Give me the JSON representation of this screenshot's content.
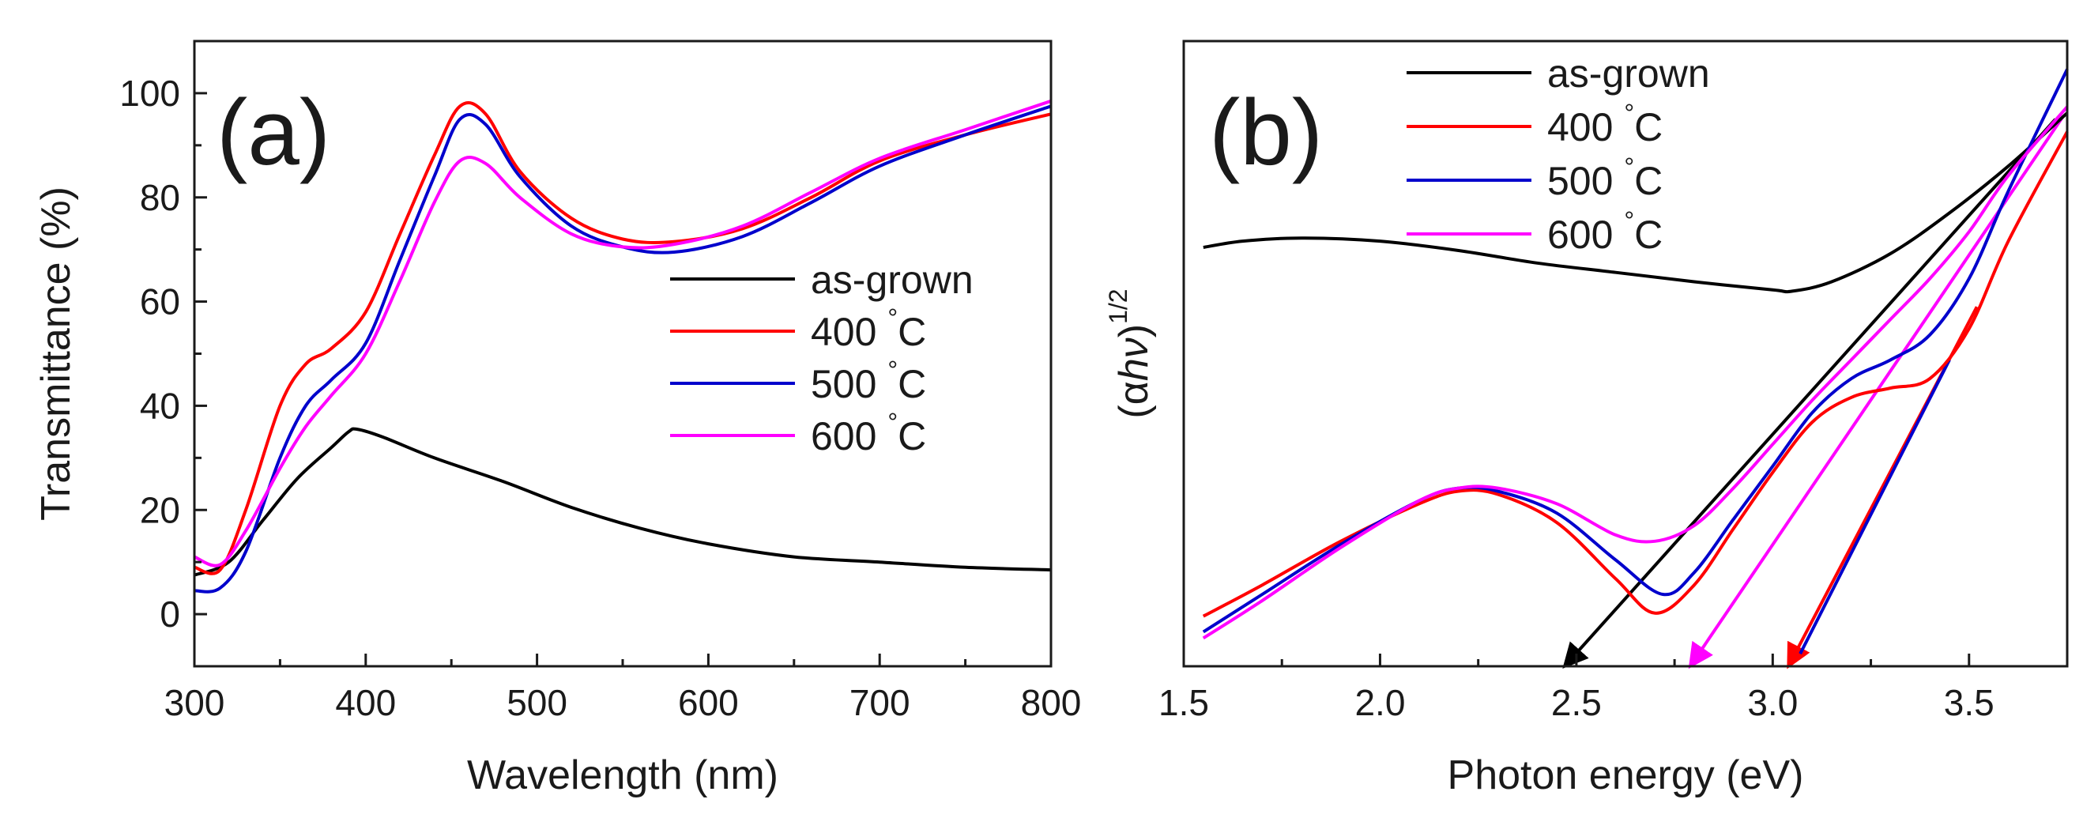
{
  "figure": {
    "description_free": true
  },
  "chart_data": [
    {
      "type": "line",
      "panel_label": "(a)",
      "xlabel": "Wavelength (nm)",
      "ylabel": "Transmittance (%)",
      "xlim": [
        300,
        800
      ],
      "ylim": [
        -10,
        110
      ],
      "xticks": [
        300,
        400,
        500,
        600,
        700,
        800
      ],
      "xtick_labels": [
        "300",
        "400",
        "500",
        "600",
        "700",
        "800"
      ],
      "yticks": [
        0,
        20,
        40,
        60,
        80,
        100
      ],
      "ytick_labels": [
        "0",
        "20",
        "40",
        "60",
        "80",
        "100"
      ],
      "grid": false,
      "legend_position": "right-middle",
      "series": [
        {
          "name": "as-grown",
          "label": "as-grown",
          "unit": "",
          "color": "#000000",
          "x": [
            300,
            320,
            340,
            360,
            380,
            390,
            395,
            410,
            440,
            480,
            520,
            560,
            600,
            650,
            700,
            750,
            800
          ],
          "y": [
            7.5,
            10,
            18,
            26,
            32,
            35,
            35.5,
            34,
            30,
            25.5,
            20.5,
            16.5,
            13.5,
            11,
            10,
            9,
            8.5
          ]
        },
        {
          "name": "400 °C",
          "label": "400",
          "unit": "°C",
          "color": "#ff0000",
          "x": [
            300,
            315,
            330,
            350,
            365,
            380,
            400,
            420,
            440,
            455,
            470,
            490,
            520,
            550,
            580,
            620,
            660,
            700,
            750,
            800
          ],
          "y": [
            9,
            8.5,
            20,
            40,
            48,
            51,
            58,
            73,
            88,
            97.5,
            96,
            85,
            76,
            72,
            71.5,
            74,
            80,
            87,
            92,
            96
          ]
        },
        {
          "name": "500 °C",
          "label": "500",
          "unit": "°C",
          "color": "#0000cc",
          "x": [
            300,
            315,
            330,
            350,
            365,
            380,
            400,
            420,
            440,
            455,
            470,
            490,
            520,
            550,
            580,
            620,
            660,
            700,
            750,
            800
          ],
          "y": [
            4.5,
            5,
            12,
            30,
            40,
            45,
            52,
            68,
            84,
            95,
            94,
            84,
            74.5,
            70.5,
            69.5,
            72.5,
            79,
            86,
            92,
            97.5
          ]
        },
        {
          "name": "600 °C",
          "label": "600",
          "unit": "°C",
          "color": "#ff00ff",
          "x": [
            300,
            315,
            330,
            350,
            365,
            380,
            400,
            420,
            440,
            455,
            470,
            490,
            520,
            550,
            580,
            620,
            660,
            700,
            750,
            800
          ],
          "y": [
            11,
            9.5,
            16,
            28,
            36,
            42,
            50,
            64,
            79,
            87,
            86.5,
            80,
            73,
            70.5,
            71,
            74.5,
            81,
            87.5,
            93,
            98.5
          ]
        }
      ]
    },
    {
      "type": "line",
      "panel_label": "(b)",
      "xlabel": "Photon energy (eV)",
      "ylabel": "(αhν)",
      "ylabel_superscript": "1/2",
      "ylabel_parts": [
        "(α",
        "h",
        "ν",
        ")"
      ],
      "xlim": [
        1.5,
        3.75
      ],
      "ylim": [
        0,
        10
      ],
      "xticks": [
        1.5,
        2.0,
        2.5,
        3.0,
        3.5
      ],
      "xtick_labels": [
        "1.5",
        "2.0",
        "2.5",
        "3.0",
        "3.5"
      ],
      "yticks": [],
      "grid": false,
      "legend_position": "top-center",
      "series": [
        {
          "name": "as-grown",
          "label": "as-grown",
          "unit": "",
          "color": "#000000",
          "x": [
            1.55,
            1.65,
            1.8,
            2.0,
            2.2,
            2.4,
            2.6,
            2.8,
            3.0,
            3.05,
            3.15,
            3.3,
            3.45,
            3.6,
            3.75
          ],
          "y": [
            6.7,
            6.8,
            6.85,
            6.8,
            6.65,
            6.45,
            6.3,
            6.15,
            6.02,
            6.0,
            6.15,
            6.6,
            7.25,
            8.0,
            8.85
          ]
        },
        {
          "name": "400 °C",
          "label": "400",
          "unit": "°C",
          "color": "#ff0000",
          "x": [
            1.55,
            1.7,
            1.9,
            2.1,
            2.2,
            2.3,
            2.45,
            2.6,
            2.7,
            2.8,
            2.9,
            3.0,
            3.1,
            3.2,
            3.3,
            3.4,
            3.5,
            3.6,
            3.75
          ],
          "y": [
            0.8,
            1.3,
            2.0,
            2.6,
            2.8,
            2.75,
            2.3,
            1.4,
            0.85,
            1.3,
            2.2,
            3.1,
            3.9,
            4.3,
            4.45,
            4.6,
            5.4,
            6.8,
            8.55
          ]
        },
        {
          "name": "500 °C",
          "label": "500",
          "unit": "°C",
          "color": "#0000cc",
          "x": [
            1.55,
            1.7,
            1.9,
            2.1,
            2.2,
            2.3,
            2.45,
            2.6,
            2.72,
            2.8,
            2.9,
            3.0,
            3.1,
            3.2,
            3.3,
            3.4,
            3.5,
            3.6,
            3.75
          ],
          "y": [
            0.55,
            1.15,
            1.95,
            2.65,
            2.85,
            2.8,
            2.45,
            1.7,
            1.15,
            1.5,
            2.35,
            3.2,
            4.05,
            4.6,
            4.9,
            5.3,
            6.2,
            7.6,
            9.55
          ]
        },
        {
          "name": "600 °C",
          "label": "600",
          "unit": "°C",
          "color": "#ff00ff",
          "x": [
            1.55,
            1.7,
            1.9,
            2.1,
            2.2,
            2.3,
            2.45,
            2.6,
            2.7,
            2.8,
            2.9,
            3.0,
            3.1,
            3.2,
            3.3,
            3.4,
            3.5,
            3.6,
            3.75
          ],
          "y": [
            0.45,
            1.05,
            1.9,
            2.65,
            2.85,
            2.85,
            2.6,
            2.1,
            2.0,
            2.25,
            2.85,
            3.55,
            4.25,
            4.9,
            5.55,
            6.2,
            6.95,
            7.85,
            8.95
          ]
        }
      ],
      "tangent_lines": [
        {
          "name": "as-grown",
          "color": "#000000",
          "x_start": 3.72,
          "y_start": 8.75,
          "x_end": 2.47,
          "y_end": 0.0
        },
        {
          "name": "600 °C",
          "color": "#ff00ff",
          "x_start": 3.74,
          "y_start": 8.8,
          "x_end": 2.79,
          "y_end": 0.0
        },
        {
          "name": "400 °C",
          "color": "#ff0000",
          "x_start": 3.52,
          "y_start": 5.75,
          "x_end": 3.04,
          "y_end": 0.0
        },
        {
          "name": "500 °C",
          "color": "#0000cc",
          "x_start": 3.45,
          "y_start": 4.9,
          "x_end": 3.07,
          "y_end": 0.2
        }
      ]
    }
  ]
}
